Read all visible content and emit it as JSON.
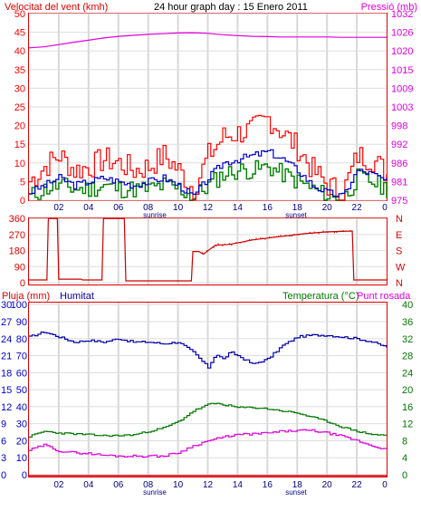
{
  "header": {
    "wind_title": "Velocitat del vent (kmh)",
    "graph_title": "24 hour graph day : 15 Enero 2011",
    "pressure_title": "Pressió (mb)"
  },
  "humidity_header": {
    "rain_title": "Pluja (mm)",
    "humidity_title": "Humitat",
    "temperature_title": "Temperatura (°C)",
    "dewpoint_title": "Punt rosada"
  },
  "markers": {
    "sunrise": "sunrise",
    "sunset": "sunset"
  },
  "colors": {
    "wind_gust": "#ff0000",
    "wind_avg": "#0000cc",
    "wind_green": "#008000",
    "pressure": "#e000e0",
    "direction": "#cc0000",
    "humidity": "#0000aa",
    "temperature": "#007700",
    "dewpoint": "#dd00dd",
    "rain": "#dd0000",
    "frame": "#dd0000"
  },
  "chart_data": [
    {
      "type": "line",
      "title": "24 hour graph day : 15 Enero 2011",
      "x_tick_labels": [
        "02",
        "04",
        "06",
        "08",
        "10",
        "12",
        "14",
        "16",
        "18",
        "20",
        "22",
        "0"
      ],
      "y_left": {
        "label": "Velocitat del vent (kmh)",
        "ticks": [
          0,
          5,
          10,
          15,
          20,
          25,
          30,
          35,
          40,
          45,
          50
        ]
      },
      "y_right": {
        "label": "Pressió (mb)",
        "ticks": [
          975,
          981,
          986,
          992,
          998,
          1003,
          1009,
          1015,
          1020,
          1026,
          1032
        ]
      },
      "x_hours": [
        0,
        1,
        2,
        3,
        4,
        5,
        6,
        7,
        8,
        9,
        10,
        11,
        12,
        13,
        14,
        15,
        16,
        17,
        18,
        19,
        20,
        21,
        22,
        23,
        24
      ],
      "series": [
        {
          "values_gust": [
            5,
            9,
            12,
            8,
            9,
            11,
            10,
            8,
            9,
            12,
            8,
            3,
            12,
            17,
            18,
            19,
            22,
            18,
            14,
            8,
            4,
            2,
            12,
            11,
            7
          ]
        },
        {
          "values_avg": [
            2,
            4,
            6,
            4,
            5,
            6,
            5,
            4,
            5,
            6,
            4,
            1,
            6,
            10,
            11,
            12,
            13,
            11,
            8,
            4,
            2,
            1,
            8,
            7,
            5
          ]
        },
        {
          "values_green": [
            1,
            3,
            4,
            3,
            3,
            4,
            3,
            3,
            3,
            4,
            3,
            1,
            4,
            7,
            8,
            8,
            9,
            7,
            5,
            3,
            1,
            0,
            6,
            5,
            3
          ]
        },
        {
          "values_pressure": [
            1021.5,
            1021.8,
            1022.5,
            1023.2,
            1023.8,
            1024.5,
            1025.0,
            1025.3,
            1025.6,
            1025.8,
            1026.0,
            1026.1,
            1025.9,
            1025.5,
            1025.2,
            1025.0,
            1024.9,
            1024.8,
            1024.8,
            1024.8,
            1024.8,
            1024.7,
            1024.7,
            1024.7,
            1024.7
          ]
        }
      ]
    },
    {
      "type": "line",
      "y_left": {
        "ticks": [
          0,
          90,
          180,
          270,
          360
        ]
      },
      "y_right": {
        "ticks": [
          "N",
          "W",
          "S",
          "E",
          "N"
        ]
      },
      "x_hours": [
        0,
        1.2,
        1.3,
        1.9,
        2.0,
        3.5,
        3.6,
        4.9,
        5.0,
        6.4,
        6.5,
        10.9,
        11.0,
        11.4,
        11.7,
        12.5,
        13.5,
        15.0,
        16.5,
        18.5,
        20.0,
        21.7,
        21.8,
        24.0
      ],
      "series": [
        {
          "name": "",
          "values": [
            15,
            15,
            360,
            360,
            20,
            20,
            15,
            15,
            360,
            360,
            10,
            10,
            175,
            175,
            160,
            210,
            215,
            240,
            255,
            275,
            285,
            290,
            15,
            15
          ]
        }
      ]
    },
    {
      "type": "line",
      "y_left_outer": {
        "label": "Pluja (mm)",
        "ticks": [
          0,
          3,
          6,
          9,
          12,
          15,
          18,
          21,
          24,
          27,
          30
        ]
      },
      "y_left_inner": {
        "label": "Humitat",
        "ticks": [
          0,
          10,
          20,
          30,
          40,
          50,
          60,
          70,
          80,
          90,
          100
        ]
      },
      "y_right": {
        "label": "Temperatura (°C)",
        "ticks": [
          0,
          4,
          8,
          12,
          16,
          20,
          24,
          28,
          32,
          36,
          40
        ]
      },
      "x_hours": [
        0,
        1,
        2,
        3,
        4,
        5,
        6,
        7,
        8,
        9,
        10,
        11,
        12,
        12.5,
        13,
        13.5,
        14,
        15,
        16,
        17,
        18,
        19,
        20,
        21,
        22,
        23,
        24
      ],
      "series": [
        {
          "name": "Humitat",
          "values": [
            81,
            84,
            81,
            78,
            79,
            78,
            80,
            78,
            78,
            77,
            78,
            72,
            63,
            71,
            68,
            72,
            70,
            65,
            68,
            76,
            81,
            82,
            82,
            81,
            80,
            78,
            75
          ]
        },
        {
          "name": "Temperatura (°C)",
          "values": [
            9.0,
            10.2,
            9.8,
            9.6,
            9.4,
            9.2,
            9.2,
            9.4,
            10.2,
            11.0,
            12.5,
            15.0,
            16.5,
            16.8,
            16.5,
            16.2,
            15.8,
            15.8,
            15.5,
            15.0,
            14.5,
            13.5,
            12.5,
            11.2,
            10.2,
            9.5,
            9.2
          ]
        },
        {
          "name": "Punt rosada",
          "values": [
            5.8,
            7.0,
            5.6,
            5.2,
            5.0,
            4.6,
            4.4,
            4.4,
            4.4,
            4.4,
            5.2,
            6.8,
            8.0,
            8.4,
            8.8,
            9.2,
            9.4,
            9.6,
            9.8,
            10.2,
            10.4,
            10.4,
            9.8,
            9.0,
            8.0,
            6.8,
            6.0
          ]
        },
        {
          "name": "Pluja (mm)",
          "values": [
            0,
            0,
            0,
            0,
            0,
            0,
            0,
            0,
            0,
            0,
            0,
            0,
            0,
            0,
            0,
            0,
            0,
            0,
            0,
            0,
            0,
            0,
            0,
            0,
            0,
            0,
            0
          ]
        }
      ]
    }
  ]
}
